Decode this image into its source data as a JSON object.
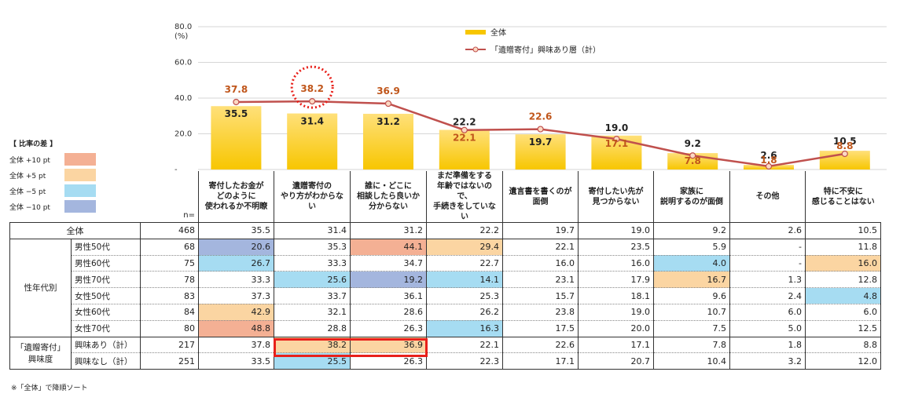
{
  "chart_data": {
    "type": "bar",
    "categories": [
      "寄付したお金が\nどのように\n使われるか不明瞭",
      "遺贈寄付の\nやり方がわからない",
      "誰に・どこに\n相談したら良いか\n分からない",
      "まだ準備をする\n年齢ではないので、\n手続きをしていない",
      "遺言書を書くのが\n面倒",
      "寄付したい先が\n見つからない",
      "家族に\n説明するのが面倒",
      "その他",
      "特に不安に\n感じることはない"
    ],
    "series": [
      {
        "name": "全体",
        "type": "bar",
        "color": "#f7c600",
        "values": [
          35.5,
          31.4,
          31.2,
          22.2,
          19.7,
          19.0,
          9.2,
          2.6,
          10.5
        ],
        "labels": [
          "35.5",
          "31.4",
          "31.2",
          "22.2",
          "19.7",
          "19.0",
          "9.2",
          "2.6",
          "10.5"
        ]
      },
      {
        "name": "「遺贈寄付」興味あり層（計）",
        "type": "line",
        "color": "#c0504d",
        "values": [
          37.8,
          38.2,
          36.9,
          22.1,
          22.6,
          17.1,
          7.8,
          1.8,
          8.8
        ],
        "labels": [
          "37.8",
          "38.2",
          "36.9",
          "22.1",
          "22.6",
          "17.1",
          "7.8",
          "1.8",
          "8.8"
        ]
      }
    ],
    "y_unit": "(%)",
    "ylim": [
      0,
      80
    ],
    "yticks": [
      "80.0",
      "60.0",
      "40.0",
      "20.0",
      "-"
    ],
    "highlight_index": 1,
    "legend_position": "top-right"
  },
  "legend_box": {
    "title": "【 比率の差 】",
    "items": [
      {
        "label": "全体 +10 pt",
        "color": "#f4b094"
      },
      {
        "label": "全体 +5 pt",
        "color": "#fbd5a2"
      },
      {
        "label": "全体 −5 pt",
        "color": "#a6dcf2"
      },
      {
        "label": "全体 −10 pt",
        "color": "#a4b6de"
      }
    ]
  },
  "table": {
    "n_header": "n=",
    "rows": [
      {
        "group": "",
        "sub": "全体",
        "n": "468",
        "values": [
          "35.5",
          "31.4",
          "31.2",
          "22.2",
          "19.7",
          "19.0",
          "9.2",
          "2.6",
          "10.5"
        ],
        "colors": [
          "",
          "",
          "",
          "",
          "",
          "",
          "",
          "",
          ""
        ]
      },
      {
        "group": "性年代別",
        "sub": "男性50代",
        "n": "68",
        "values": [
          "20.6",
          "35.3",
          "44.1",
          "29.4",
          "22.1",
          "23.5",
          "5.9",
          "-",
          "11.8"
        ],
        "colors": [
          "#a4b6de",
          "",
          "#f4b094",
          "#fbd5a2",
          "",
          "",
          "",
          "",
          ""
        ]
      },
      {
        "group": "",
        "sub": "男性60代",
        "n": "75",
        "values": [
          "26.7",
          "33.3",
          "34.7",
          "22.7",
          "16.0",
          "16.0",
          "4.0",
          "-",
          "16.0"
        ],
        "colors": [
          "#a6dcf2",
          "",
          "",
          "",
          "",
          "",
          "#a6dcf2",
          "",
          "#fbd5a2"
        ]
      },
      {
        "group": "",
        "sub": "男性70代",
        "n": "78",
        "values": [
          "33.3",
          "25.6",
          "19.2",
          "14.1",
          "23.1",
          "17.9",
          "16.7",
          "1.3",
          "12.8"
        ],
        "colors": [
          "",
          "#a6dcf2",
          "#a4b6de",
          "#a6dcf2",
          "",
          "",
          "#fbd5a2",
          "",
          ""
        ]
      },
      {
        "group": "",
        "sub": "女性50代",
        "n": "83",
        "values": [
          "37.3",
          "33.7",
          "36.1",
          "25.3",
          "15.7",
          "18.1",
          "9.6",
          "2.4",
          "4.8"
        ],
        "colors": [
          "",
          "",
          "",
          "",
          "",
          "",
          "",
          "",
          "#a6dcf2"
        ]
      },
      {
        "group": "",
        "sub": "女性60代",
        "n": "84",
        "values": [
          "42.9",
          "32.1",
          "28.6",
          "26.2",
          "23.8",
          "19.0",
          "10.7",
          "6.0",
          "6.0"
        ],
        "colors": [
          "#fbd5a2",
          "",
          "",
          "",
          "",
          "",
          "",
          "",
          ""
        ]
      },
      {
        "group": "",
        "sub": "女性70代",
        "n": "80",
        "values": [
          "48.8",
          "28.8",
          "26.3",
          "16.3",
          "17.5",
          "20.0",
          "7.5",
          "5.0",
          "12.5"
        ],
        "colors": [
          "#f4b094",
          "",
          "",
          "#a6dcf2",
          "",
          "",
          "",
          "",
          ""
        ]
      },
      {
        "group": "「遺贈寄付」\n興味度",
        "sub": "興味あり（計）",
        "n": "217",
        "values": [
          "37.8",
          "38.2",
          "36.9",
          "22.1",
          "22.6",
          "17.1",
          "7.8",
          "1.8",
          "8.8"
        ],
        "colors": [
          "",
          "#fbd5a2",
          "#fbd5a2",
          "",
          "",
          "",
          "",
          "",
          ""
        ]
      },
      {
        "group": "",
        "sub": "興味なし（計）",
        "n": "251",
        "values": [
          "33.5",
          "25.5",
          "26.3",
          "22.3",
          "17.1",
          "20.7",
          "10.4",
          "3.2",
          "12.0"
        ],
        "colors": [
          "",
          "#a6dcf2",
          "",
          "",
          "",
          "",
          "",
          "",
          ""
        ]
      }
    ]
  },
  "footnote": "※「全体」で降順ソート"
}
